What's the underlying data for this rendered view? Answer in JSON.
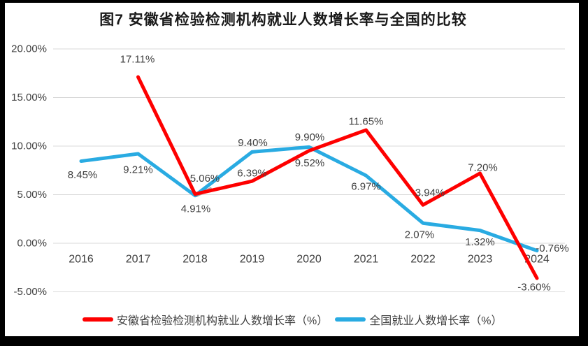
{
  "figure": {
    "title": "图7 安徽省检验检测机构就业人数增长率与全国的比较"
  },
  "chart_data": {
    "type": "line",
    "title": "图7 安徽省检验检测机构就业人数增长率与全国的比较",
    "categories": [
      "2016",
      "2017",
      "2018",
      "2019",
      "2020",
      "2021",
      "2022",
      "2023",
      "2024"
    ],
    "series": [
      {
        "name": "安徽省检验检测机构就业人数增长率（%）",
        "color": "#FE0000",
        "values": [
          null,
          17.11,
          5.06,
          6.39,
          9.52,
          11.65,
          3.94,
          7.2,
          -3.6
        ],
        "labels": [
          "",
          "17.11%",
          "5.06%",
          "6.39%",
          "9.52%",
          "11.65%",
          "3.94%",
          "7.20%",
          "-3.60%"
        ]
      },
      {
        "name": "全国就业人数增长率（%）",
        "color": "#29ABE2",
        "values": [
          8.45,
          9.21,
          4.91,
          9.4,
          9.9,
          6.97,
          2.07,
          1.32,
          -0.76
        ],
        "labels": [
          "8.45%",
          "9.21%",
          "4.91%",
          "9.40%",
          "9.90%",
          "6.97%",
          "2.07%",
          "1.32%",
          "-0.76%"
        ]
      }
    ],
    "xlabel": "",
    "ylabel": "",
    "y_axis": {
      "ticks": [
        20,
        15,
        10,
        5,
        0,
        -5
      ],
      "tick_labels": [
        "20.00%",
        "15.00%",
        "10.00%",
        "5.00%",
        "0.00%",
        "-5.00%"
      ],
      "ylim": [
        -5,
        20
      ]
    },
    "grid": true,
    "data_labels_shown": true,
    "legend_position": "bottom"
  },
  "colors": {
    "grid": "#D9D9D9",
    "axis_text": "#404040",
    "label_text": "#404040",
    "title_text": "#1A1A1A",
    "frame": "#000000",
    "background": "#FFFFFF"
  }
}
